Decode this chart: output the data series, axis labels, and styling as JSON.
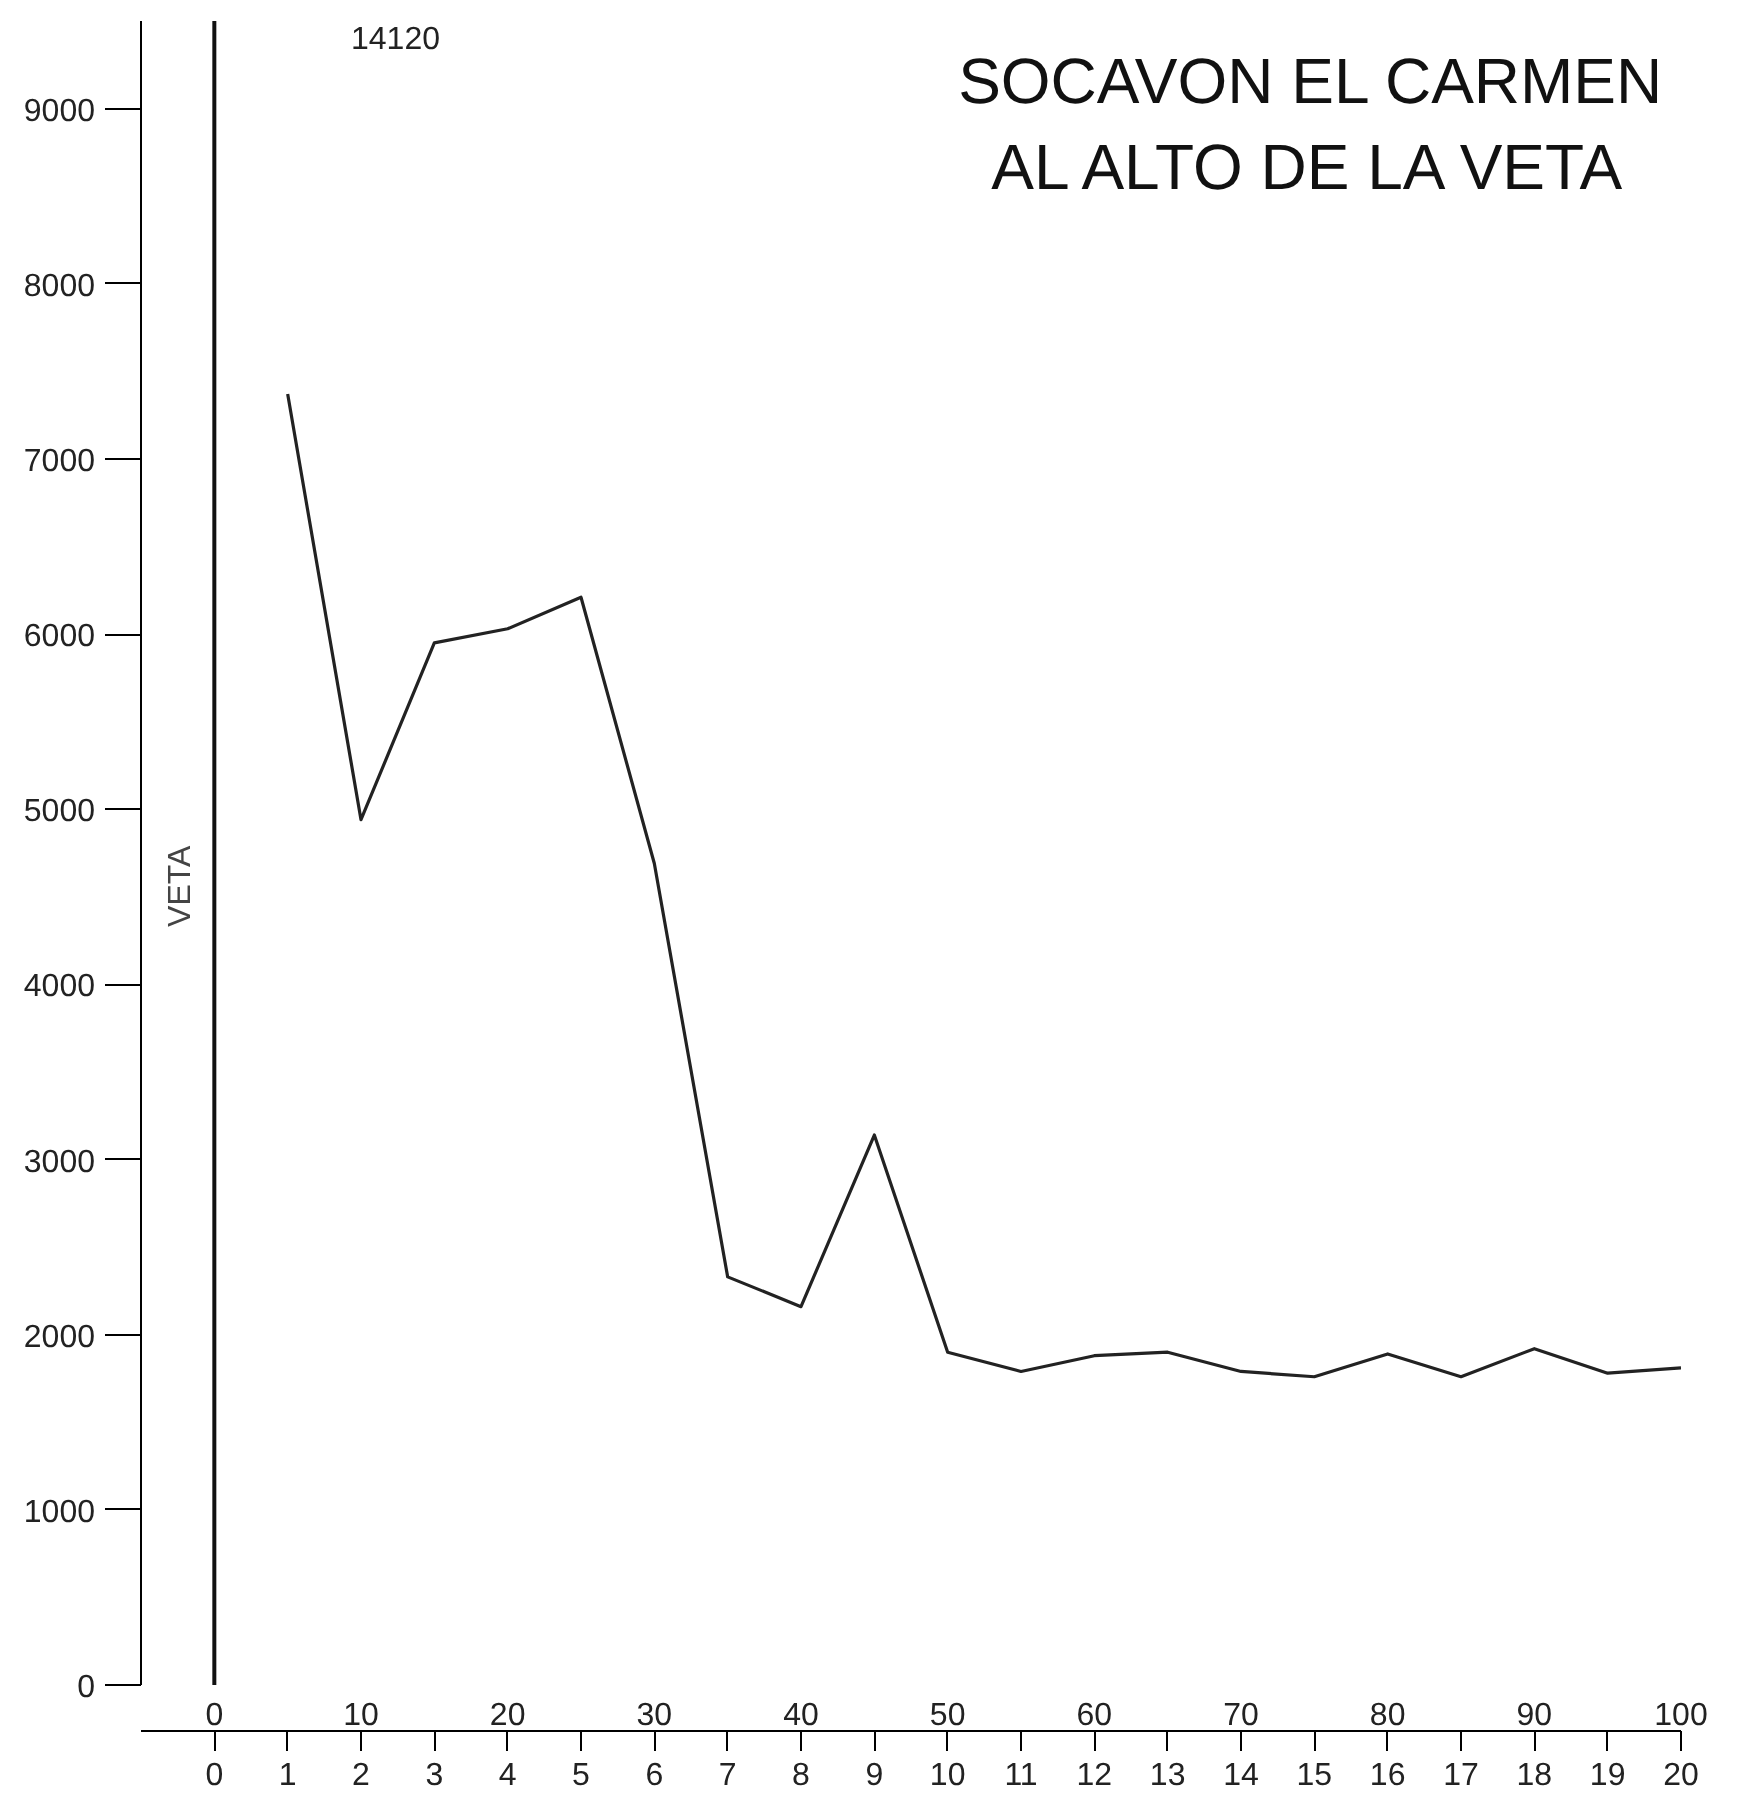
{
  "chart_data": {
    "type": "line",
    "title": "SOCAVON EL CARMEN\nAL ALTO DE LA VETA",
    "x": [
      1,
      2,
      3,
      4,
      5,
      6,
      7,
      8,
      9,
      10,
      11,
      12,
      13,
      14,
      15,
      16,
      17,
      18,
      19,
      20
    ],
    "series": [
      {
        "color": "#222222",
        "values": [
          7370,
          4940,
          5950,
          6030,
          6210,
          4690,
          2330,
          2160,
          3140,
          1900,
          1790,
          1880,
          1900,
          1790,
          1760,
          1890,
          1760,
          1920,
          1780,
          1810
        ]
      }
    ],
    "annotations": [
      "14120"
    ],
    "xlim": [
      -1,
      20
    ],
    "xticks": [
      0,
      1,
      2,
      3,
      4,
      5,
      6,
      7,
      8,
      9,
      10,
      11,
      12,
      13,
      14,
      15,
      16,
      17,
      18,
      19,
      20
    ],
    "x2lim": [
      -5,
      100
    ],
    "x2ticks": [
      0,
      10,
      20,
      30,
      40,
      50,
      60,
      70,
      80,
      90,
      100
    ],
    "ylim": [
      0,
      9500
    ],
    "yticks": [
      0,
      1000,
      2000,
      3000,
      4000,
      5000,
      6000,
      7000,
      8000,
      9000
    ],
    "ref_lines": [
      {
        "axis": "x",
        "value": 0,
        "label": "VETA",
        "color": "#111111"
      }
    ],
    "grid": false,
    "marker": "none",
    "line_style": "solid"
  }
}
